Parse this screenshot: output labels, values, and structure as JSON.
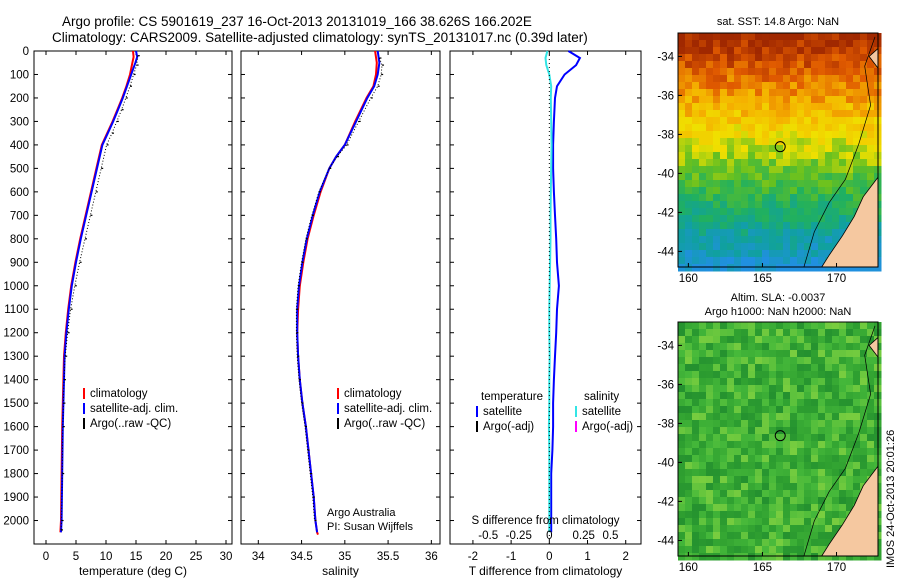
{
  "header": {
    "line1": "Argo profile: CS 5901619_237 16-Oct-2013 20131019_166 38.626S 166.202E",
    "line2": "Climatology: CARS2009. Satellite-adjusted climatology: synTS_20131017.nc (0.39d later)"
  },
  "stamp": "IMOS 24-Oct-2013 20:01:26",
  "colors": {
    "climatology": "#ff0000",
    "satellite": "#0000ff",
    "argo": "#000000",
    "salinity_satellite": "#33e5e5",
    "salinity_argo": "#ff00ff",
    "land": "#f5c8a0"
  },
  "chart_data": [
    {
      "type": "line",
      "id": "temperature",
      "xlabel": "temperature (deg C)",
      "ylabel": "",
      "xlim": [
        -2,
        31
      ],
      "ylim": [
        2100,
        0
      ],
      "xticks": [
        0,
        5,
        10,
        15,
        20,
        25,
        30
      ],
      "yticks": [
        0,
        100,
        200,
        300,
        400,
        500,
        600,
        700,
        800,
        900,
        1000,
        1100,
        1200,
        1300,
        1400,
        1500,
        1600,
        1700,
        1800,
        1900,
        2000
      ],
      "legend": [
        "climatology",
        "satellite-adj. clim.",
        "Argo(..raw -QC)"
      ],
      "legend_position": "lower-right",
      "series": [
        {
          "name": "climatology",
          "color": "#ff0000",
          "x": [
            14.5,
            14.6,
            14.4,
            14.0,
            13.4,
            12.7,
            11.9,
            11.1,
            10.2,
            9.3,
            8.4,
            7.5,
            6.6,
            5.7,
            4.9,
            4.2,
            3.7,
            3.3,
            3.0,
            2.9,
            2.8,
            2.7,
            2.6,
            2.5,
            2.4
          ],
          "y": [
            0,
            25,
            50,
            100,
            150,
            200,
            250,
            300,
            350,
            400,
            500,
            600,
            700,
            800,
            900,
            1000,
            1100,
            1200,
            1300,
            1400,
            1500,
            1600,
            1800,
            2000,
            2050
          ]
        },
        {
          "name": "satellite-adj. clim.",
          "color": "#0000ff",
          "x": [
            15.0,
            15.2,
            14.9,
            14.2,
            13.5,
            12.8,
            12.0,
            11.2,
            10.3,
            9.4,
            8.5,
            7.6,
            6.7,
            5.8,
            5.0,
            4.3,
            3.8,
            3.4,
            3.1,
            3.0,
            2.9,
            2.8,
            2.7,
            2.6,
            2.5
          ],
          "y": [
            0,
            25,
            50,
            100,
            150,
            200,
            250,
            300,
            350,
            400,
            500,
            600,
            700,
            800,
            900,
            1000,
            1100,
            1200,
            1300,
            1400,
            1500,
            1600,
            1800,
            2000,
            2050
          ]
        },
        {
          "name": "Argo(..raw -QC)",
          "color": "#000000",
          "x": [
            15.3,
            15.1,
            14.6,
            14.0,
            13.3,
            12.6,
            11.8,
            11.0,
            10.1,
            9.2,
            8.3,
            7.4,
            6.5,
            5.6,
            4.8,
            4.1,
            3.6,
            3.2,
            3.0,
            2.9,
            2.8,
            2.7,
            2.6,
            2.5
          ],
          "y": [
            20,
            60,
            100,
            150,
            200,
            250,
            300,
            350,
            400,
            500,
            600,
            700,
            800,
            900,
            1000,
            1100,
            1200,
            1300,
            1400,
            1500,
            1600,
            1800,
            2000,
            2040
          ]
        }
      ]
    },
    {
      "type": "line",
      "id": "salinity",
      "xlabel": "salinity",
      "ylabel": "",
      "xlim": [
        33.8,
        36.1
      ],
      "ylim": [
        2100,
        0
      ],
      "xticks": [
        34,
        34.5,
        35,
        35.5,
        36
      ],
      "legend": [
        "climatology",
        "satellite-adj. clim.",
        "Argo(..raw -QC)"
      ],
      "legend_position": "lower-right",
      "annotation": [
        "Argo Australia",
        "PI: Susan Wijffels"
      ],
      "series": [
        {
          "name": "climatology",
          "color": "#ff0000",
          "x": [
            35.35,
            35.37,
            35.36,
            35.33,
            35.25,
            35.12,
            35.0,
            34.9,
            34.82,
            34.72,
            34.64,
            34.57,
            34.52,
            34.48,
            34.46,
            34.45,
            34.46,
            34.48,
            34.51,
            34.55,
            34.58,
            34.61,
            34.64,
            34.66,
            34.68,
            34.69
          ],
          "y": [
            0,
            50,
            100,
            150,
            200,
            300,
            400,
            450,
            500,
            600,
            700,
            800,
            900,
            1000,
            1100,
            1200,
            1300,
            1400,
            1500,
            1600,
            1700,
            1800,
            1900,
            2000,
            2050,
            2060
          ]
        },
        {
          "name": "satellite-adj. clim.",
          "color": "#0000ff",
          "x": [
            35.38,
            35.4,
            35.38,
            35.34,
            35.26,
            35.13,
            35.0,
            34.9,
            34.82,
            34.71,
            34.63,
            34.56,
            34.51,
            34.47,
            34.45,
            34.45,
            34.46,
            34.48,
            34.51,
            34.55,
            34.58,
            34.61,
            34.64,
            34.66,
            34.68
          ],
          "y": [
            0,
            50,
            100,
            150,
            200,
            300,
            400,
            450,
            500,
            600,
            700,
            800,
            900,
            1000,
            1100,
            1200,
            1300,
            1400,
            1500,
            1600,
            1700,
            1800,
            1900,
            2000,
            2050
          ]
        },
        {
          "name": "Argo(..raw -QC)",
          "color": "#000000",
          "x": [
            35.4,
            35.43,
            35.42,
            35.38,
            35.3,
            35.16,
            35.02,
            34.91,
            34.82,
            34.7,
            34.62,
            34.55,
            34.5,
            34.46,
            34.44,
            34.44,
            34.45,
            34.47,
            34.5,
            34.54,
            34.57,
            34.6,
            34.63,
            34.65
          ],
          "y": [
            30,
            60,
            100,
            150,
            200,
            300,
            400,
            450,
            500,
            600,
            700,
            800,
            900,
            1000,
            1100,
            1200,
            1300,
            1400,
            1500,
            1600,
            1700,
            1800,
            1900,
            2000
          ]
        }
      ]
    },
    {
      "type": "line",
      "id": "difference",
      "xlabel": "T difference from climatology",
      "xlabel_top": "S difference from climatology",
      "xlim": [
        -2.6,
        2.4
      ],
      "ylim": [
        2100,
        0
      ],
      "xticks": [
        -2,
        -1,
        0,
        1,
        2
      ],
      "xticks_salinity": [
        "-0.5",
        "-0.25",
        "0",
        "0.25",
        "0.5"
      ],
      "legend_temperature_title": "temperature",
      "legend_temperature": [
        "satellite",
        "Argo(-adj)"
      ],
      "legend_salinity_title": "salinity",
      "legend_salinity": [
        "satellite",
        "Argo(-adj)"
      ],
      "series": [
        {
          "name": "temperature satellite",
          "color": "#0000ff",
          "x": [
            0.5,
            0.8,
            0.7,
            0.4,
            0.2,
            0.15,
            0.12,
            0.1,
            0.1,
            0.12,
            0.15,
            0.18,
            0.2,
            0.25,
            0.2,
            0.18,
            0.15,
            0.12,
            0.1,
            0.1,
            0.08,
            0.05,
            0.05,
            0.05,
            0.05
          ],
          "y": [
            0,
            30,
            60,
            100,
            150,
            200,
            300,
            400,
            500,
            600,
            700,
            800,
            900,
            1000,
            1100,
            1200,
            1300,
            1400,
            1500,
            1600,
            1700,
            1800,
            1900,
            2000,
            2050
          ]
        },
        {
          "name": "salinity satellite",
          "color": "#33e5e5",
          "x": [
            -0.05,
            -0.1,
            -0.08,
            0.0,
            0.05,
            0.04,
            0.05,
            0.06,
            0.05,
            0.04,
            0.03,
            0.03,
            0.02,
            0.01,
            0.0,
            0.0,
            0.01,
            0.0,
            0.0,
            -0.01,
            0.0,
            0.0,
            0.0,
            0.0,
            0.0
          ],
          "y": [
            0,
            30,
            60,
            100,
            150,
            200,
            300,
            400,
            500,
            600,
            700,
            800,
            900,
            1000,
            1100,
            1200,
            1300,
            1400,
            1500,
            1600,
            1700,
            1800,
            1900,
            2000,
            2050
          ]
        }
      ]
    },
    {
      "type": "heatmap",
      "id": "sst-map",
      "title": "sat. SST: 14.8 Argo: NaN",
      "xlim": [
        159.3,
        172.8
      ],
      "ylim": [
        -44.8,
        -32.8
      ],
      "xticks": [
        160,
        165,
        170
      ],
      "yticks": [
        -34,
        -36,
        -38,
        -40,
        -42,
        -44
      ],
      "marker": {
        "lon": 166.2,
        "lat": -38.63
      }
    },
    {
      "type": "heatmap",
      "id": "sla-map",
      "title_line1": "Altim. SLA: -0.0037",
      "title_line2": "Argo h1000: NaN h2000: NaN",
      "xlim": [
        159.3,
        172.8
      ],
      "ylim": [
        -44.8,
        -32.8
      ],
      "xticks": [
        160,
        165,
        170
      ],
      "yticks": [
        -34,
        -36,
        -38,
        -40,
        -42,
        -44
      ],
      "marker": {
        "lon": 166.2,
        "lat": -38.63
      }
    }
  ]
}
